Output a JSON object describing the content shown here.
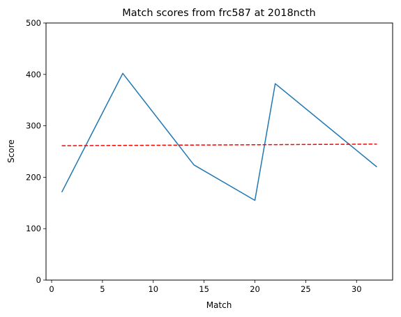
{
  "chart_data": {
    "type": "line",
    "title": "Match scores from frc587 at 2018ncth",
    "xlabel": "Match",
    "ylabel": "Score",
    "xlim": [
      -0.55,
      33.55
    ],
    "ylim": [
      0,
      500
    ],
    "xticks": [
      0,
      5,
      10,
      15,
      20,
      25,
      30
    ],
    "yticks": [
      0,
      100,
      200,
      300,
      400,
      500
    ],
    "grid": false,
    "series": [
      {
        "style": "solid",
        "color": "#1f77b4",
        "x": [
          1,
          7,
          14,
          20,
          22,
          32
        ],
        "y": [
          171,
          402,
          224,
          155,
          382,
          220
        ]
      },
      {
        "style": "dashed",
        "color": "#ff0000",
        "x": [
          1,
          32
        ],
        "y": [
          261.3,
          264.4
        ]
      }
    ]
  }
}
